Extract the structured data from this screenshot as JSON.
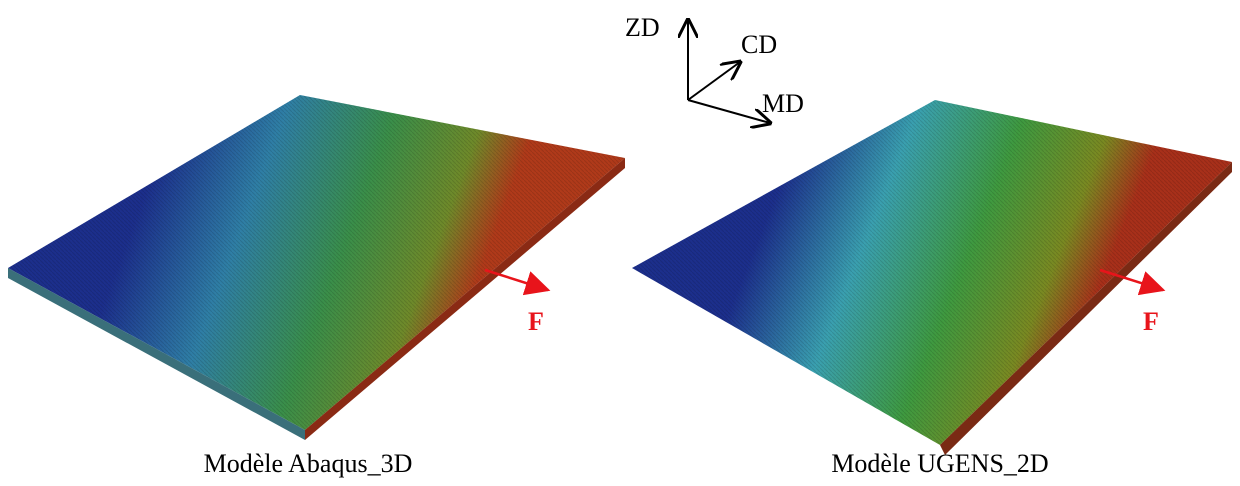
{
  "axes": {
    "labels": [
      "ZD",
      "CD",
      "MD"
    ]
  },
  "panels": [
    {
      "force_label": "F",
      "caption": "Modèle Abaqus_3D"
    },
    {
      "force_label": "F",
      "caption": "Modèle UGENS_2D"
    }
  ]
}
